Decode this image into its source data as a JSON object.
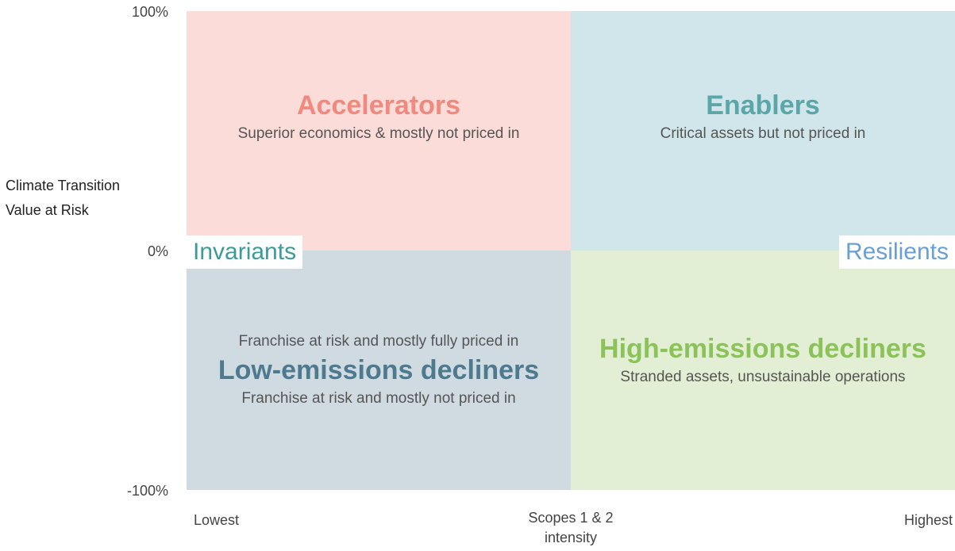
{
  "axes": {
    "y_label": [
      "Climate Transition",
      "Value at Risk"
    ],
    "y_ticks": [
      "100%",
      "0%",
      "-100%"
    ],
    "x_labels": {
      "left": "Lowest",
      "center": [
        "Scopes 1 & 2",
        "intensity"
      ],
      "right": "Highest"
    }
  },
  "quadrants": {
    "top_left": {
      "title": "Accelerators",
      "subtitle": "Superior economics & mostly not priced in"
    },
    "top_right": {
      "title": "Enablers",
      "subtitle": "Critical assets but not priced in"
    },
    "bottom_left": {
      "above": "Franchise at risk and mostly fully priced in",
      "title": "Low-emissions decliners",
      "subtitle": "Franchise at risk and mostly not priced in"
    },
    "bottom_right": {
      "title": "High-emissions decliners",
      "subtitle": "Stranded assets, unsustainable operations"
    }
  },
  "corner_labels": {
    "left": "Invariants",
    "right": "Resilients"
  }
}
